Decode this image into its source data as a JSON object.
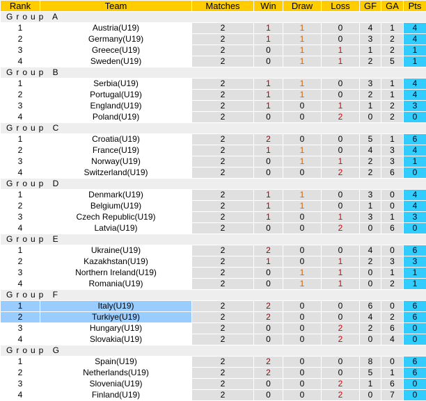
{
  "header": {
    "rank": "Rank",
    "team": "Team",
    "matches": "Matches",
    "win": "Win",
    "draw": "Draw",
    "loss": "Loss",
    "gf": "GF",
    "ga": "GA",
    "pts": "Pts"
  },
  "colors": {
    "header_bg": "#ffcc00",
    "pts_bg": "#33ccff",
    "highlight_bg": "#99ccff",
    "cell_bg": "#e0e0e0",
    "group_bg": "#eeeeee"
  },
  "groups": [
    {
      "label": "Group A",
      "rows": [
        [
          "1",
          "Austria(U19)",
          "2",
          "1",
          "1",
          "0",
          "4",
          "1",
          "4"
        ],
        [
          "2",
          "Germany(U19)",
          "2",
          "1",
          "1",
          "0",
          "3",
          "2",
          "4"
        ],
        [
          "3",
          "Greece(U19)",
          "2",
          "0",
          "1",
          "1",
          "1",
          "2",
          "1"
        ],
        [
          "4",
          "Sweden(U19)",
          "2",
          "0",
          "1",
          "1",
          "2",
          "5",
          "1"
        ]
      ]
    },
    {
      "label": "Group B",
      "rows": [
        [
          "1",
          "Serbia(U19)",
          "2",
          "1",
          "1",
          "0",
          "3",
          "1",
          "4"
        ],
        [
          "2",
          "Portugal(U19)",
          "2",
          "1",
          "1",
          "0",
          "2",
          "1",
          "4"
        ],
        [
          "3",
          "England(U19)",
          "2",
          "1",
          "0",
          "1",
          "1",
          "2",
          "3"
        ],
        [
          "4",
          "Poland(U19)",
          "2",
          "0",
          "0",
          "2",
          "0",
          "2",
          "0"
        ]
      ]
    },
    {
      "label": "Group C",
      "rows": [
        [
          "1",
          "Croatia(U19)",
          "2",
          "2",
          "0",
          "0",
          "5",
          "1",
          "6"
        ],
        [
          "2",
          "France(U19)",
          "2",
          "1",
          "1",
          "0",
          "4",
          "3",
          "4"
        ],
        [
          "3",
          "Norway(U19)",
          "2",
          "0",
          "1",
          "1",
          "2",
          "3",
          "1"
        ],
        [
          "4",
          "Switzerland(U19)",
          "2",
          "0",
          "0",
          "2",
          "2",
          "6",
          "0"
        ]
      ]
    },
    {
      "label": "Group D",
      "rows": [
        [
          "1",
          "Denmark(U19)",
          "2",
          "1",
          "1",
          "0",
          "3",
          "0",
          "4"
        ],
        [
          "2",
          "Belgium(U19)",
          "2",
          "1",
          "1",
          "0",
          "1",
          "0",
          "4"
        ],
        [
          "3",
          "Czech Republic(U19)",
          "2",
          "1",
          "0",
          "1",
          "3",
          "1",
          "3"
        ],
        [
          "4",
          "Latvia(U19)",
          "2",
          "0",
          "0",
          "2",
          "0",
          "6",
          "0"
        ]
      ]
    },
    {
      "label": "Group E",
      "rows": [
        [
          "1",
          "Ukraine(U19)",
          "2",
          "2",
          "0",
          "0",
          "4",
          "0",
          "6"
        ],
        [
          "2",
          "Kazakhstan(U19)",
          "2",
          "1",
          "0",
          "1",
          "2",
          "3",
          "3"
        ],
        [
          "3",
          "Northern Ireland(U19)",
          "2",
          "0",
          "1",
          "1",
          "0",
          "1",
          "1"
        ],
        [
          "4",
          "Romania(U19)",
          "2",
          "0",
          "1",
          "1",
          "0",
          "2",
          "1"
        ]
      ]
    },
    {
      "label": "Group F",
      "highlight": [
        0,
        1
      ],
      "rows": [
        [
          "1",
          "Italy(U19)",
          "2",
          "2",
          "0",
          "0",
          "6",
          "0",
          "6"
        ],
        [
          "2",
          "Turkiye(U19)",
          "2",
          "2",
          "0",
          "0",
          "4",
          "2",
          "6"
        ],
        [
          "3",
          "Hungary(U19)",
          "2",
          "0",
          "0",
          "2",
          "2",
          "6",
          "0"
        ],
        [
          "4",
          "Slovakia(U19)",
          "2",
          "0",
          "0",
          "2",
          "0",
          "4",
          "0"
        ]
      ]
    },
    {
      "label": "Group G",
      "rows": [
        [
          "1",
          "Spain(U19)",
          "2",
          "2",
          "0",
          "0",
          "8",
          "0",
          "6"
        ],
        [
          "2",
          "Netherlands(U19)",
          "2",
          "2",
          "0",
          "0",
          "5",
          "1",
          "6"
        ],
        [
          "3",
          "Slovenia(U19)",
          "2",
          "0",
          "0",
          "2",
          "1",
          "6",
          "0"
        ],
        [
          "4",
          "Finland(U19)",
          "2",
          "0",
          "0",
          "2",
          "0",
          "7",
          "0"
        ]
      ]
    }
  ]
}
